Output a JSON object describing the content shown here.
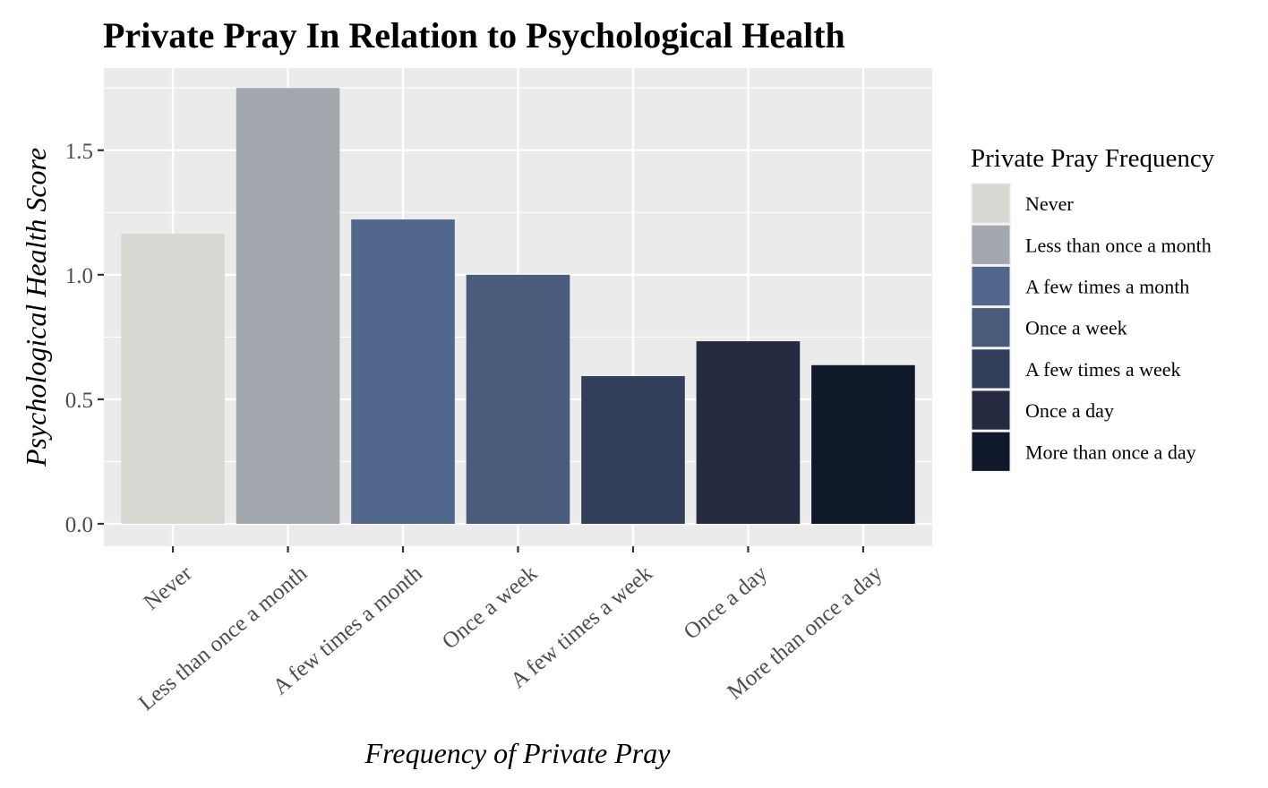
{
  "chart_data": {
    "type": "bar",
    "title": "Private Pray In Relation to Psychological Health",
    "xlabel": "Frequency of Private Pray",
    "ylabel": "Psychological Health Score",
    "categories": [
      "Never",
      "Less than once a month",
      "A few times a month",
      "Once a week",
      "A few times a week",
      "Once a day",
      "More than once a day"
    ],
    "values": [
      1.165,
      1.75,
      1.222,
      1.0,
      0.593,
      0.733,
      0.637
    ],
    "colors": [
      "#d8d8d2",
      "#a2a8ae",
      "#51688c",
      "#4a5c7c",
      "#323f5b",
      "#252a40",
      "#10192a"
    ],
    "ylim": [
      -0.09,
      1.83
    ],
    "yticks": [
      0.0,
      0.5,
      1.0,
      1.5
    ],
    "ytick_labels": [
      "0.0",
      "0.5",
      "1.0",
      "1.5"
    ],
    "grid": true,
    "legend": {
      "title": "Private Pray Frequency",
      "position": "right",
      "entries": [
        "Never",
        "Less than once a month",
        "A few times a month",
        "Once a week",
        "A few times a week",
        "Once a day",
        "More than once a day"
      ]
    }
  }
}
